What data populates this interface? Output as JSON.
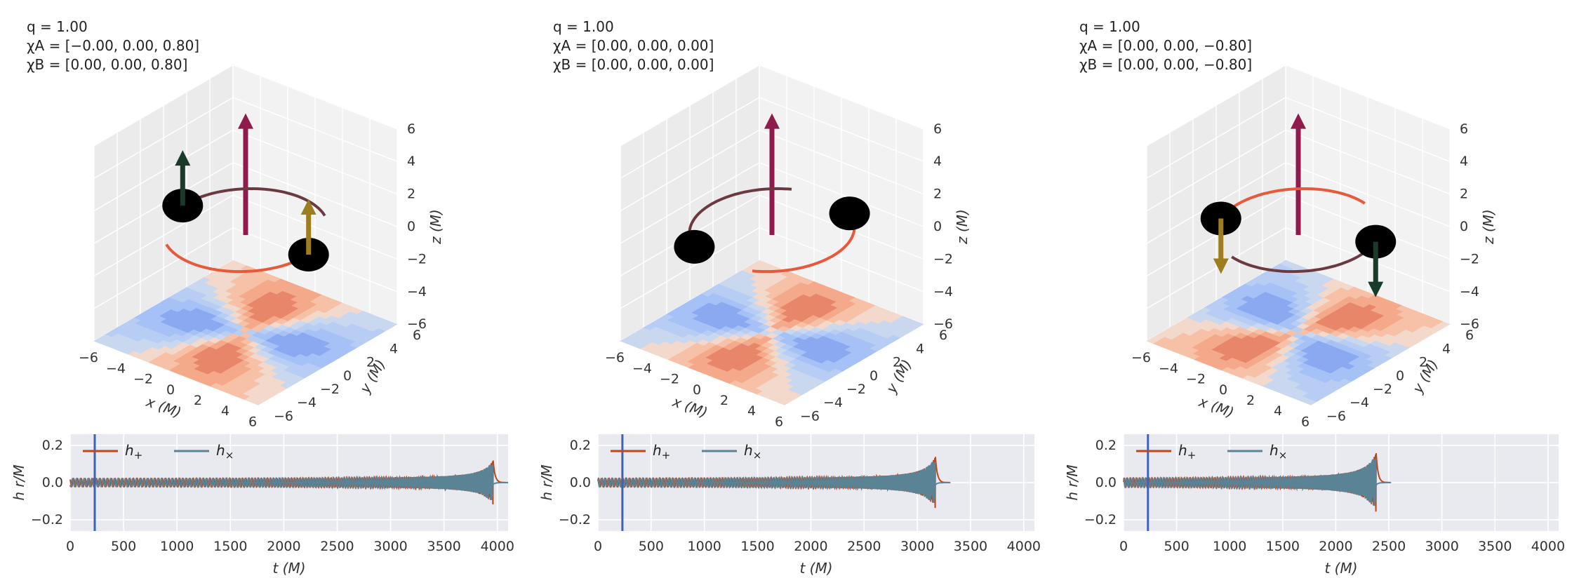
{
  "colors": {
    "background": "#ffffff",
    "pane": "#f2f2f2",
    "pane_side": "#ebebeb",
    "grid": "#ffffff",
    "bh": "#000000",
    "orbit_a": "#e8583b",
    "orbit_b": "#6b3a40",
    "orbital_L": "#8e1b4c",
    "spin_a": "#9c7e1e",
    "spin_b": "#1b3b2a",
    "hplus": "#c0451b",
    "hcross": "#5a8496",
    "vline": "#3e63b5",
    "plot_bg": "#e9e9f0",
    "contour_blue": [
      "#c9d8ee",
      "#b8cdf3",
      "#a6c1f6",
      "#8aa9f0"
    ],
    "contour_red": [
      "#f2d9cc",
      "#f6c1a6",
      "#f3a98a",
      "#e8866a"
    ]
  },
  "chart_data": [
    {
      "type": "3d-trajectory",
      "annotation": [
        "q = 1.00",
        "χA = [−0.00, 0.00, 0.80]",
        "χB = [0.00, 0.00, 0.80]"
      ],
      "axes": {
        "x": {
          "label": "x (M)",
          "range": [
            -6,
            6
          ],
          "ticks": [
            "−6",
            "−4",
            "−2",
            "0",
            "2",
            "4",
            "6"
          ]
        },
        "y": {
          "label": "y (M)",
          "range": [
            -6,
            6
          ],
          "ticks": [
            "−6",
            "−4",
            "−2",
            "0",
            "2",
            "4",
            "6"
          ]
        },
        "z": {
          "label": "z (M)",
          "range": [
            -6,
            6
          ],
          "ticks": [
            "−6",
            "−4",
            "−2",
            "0",
            "2",
            "4",
            "6"
          ]
        }
      },
      "spin_direction": [
        1,
        1
      ],
      "phase_deg": 0,
      "description": "Black holes A and B on a circular orbit with spins aligned with orbital angular momentum"
    },
    {
      "type": "3d-trajectory",
      "annotation": [
        "q = 1.00",
        "χA = [0.00, 0.00, 0.00]",
        "χB = [0.00, 0.00, 0.00]"
      ],
      "axes": {
        "x": {
          "label": "x (M)",
          "range": [
            -6,
            6
          ],
          "ticks": [
            "−6",
            "−4",
            "−2",
            "0",
            "2",
            "4",
            "6"
          ]
        },
        "y": {
          "label": "y (M)",
          "range": [
            -6,
            6
          ],
          "ticks": [
            "−6",
            "−4",
            "−2",
            "0",
            "2",
            "4",
            "6"
          ]
        },
        "z": {
          "label": "z (M)",
          "range": [
            -6,
            6
          ],
          "ticks": [
            "−6",
            "−4",
            "−2",
            "0",
            "2",
            "4",
            "6"
          ]
        }
      },
      "spin_direction": [
        0,
        0
      ],
      "phase_deg": 60,
      "description": "Non-spinning equal-mass binary"
    },
    {
      "type": "3d-trajectory",
      "annotation": [
        "q = 1.00",
        "χA = [0.00, 0.00, −0.80]",
        "χB = [0.00, 0.00, −0.80]"
      ],
      "axes": {
        "x": {
          "label": "x (M)",
          "range": [
            -6,
            6
          ],
          "ticks": [
            "−6",
            "−4",
            "−2",
            "0",
            "2",
            "4",
            "6"
          ]
        },
        "y": {
          "label": "y (M)",
          "range": [
            -6,
            6
          ],
          "ticks": [
            "−6",
            "−4",
            "−2",
            "0",
            "2",
            "4",
            "6"
          ]
        },
        "z": {
          "label": "z (M)",
          "range": [
            -6,
            6
          ],
          "ticks": [
            "−6",
            "−4",
            "−2",
            "0",
            "2",
            "4",
            "6"
          ]
        }
      },
      "spin_direction": [
        -1,
        -1
      ],
      "phase_deg": 200,
      "description": "Spins anti-aligned with orbital angular momentum"
    },
    {
      "type": "line",
      "title": "",
      "xlabel": "t (M)",
      "ylabel": "h r/M",
      "xlim": [
        0,
        4100
      ],
      "ylim": [
        -0.26,
        0.26
      ],
      "xticks": [
        "0",
        "500",
        "1000",
        "1500",
        "2000",
        "2500",
        "3000",
        "3500",
        "4000"
      ],
      "yticks": [
        "−0.2",
        "0.0",
        "0.2"
      ],
      "merger_time": 3960,
      "vline_t": 230,
      "series": [
        {
          "name": "h+",
          "label": "h",
          "sub": "+",
          "inspiral_amplitude": 0.02,
          "peak_amplitude": 0.12
        },
        {
          "name": "h×",
          "label": "h",
          "sub": "×",
          "inspiral_amplitude": 0.02,
          "peak_amplitude": 0.12
        }
      ]
    },
    {
      "type": "line",
      "title": "",
      "xlabel": "t (M)",
      "ylabel": "h r/M",
      "xlim": [
        0,
        4100
      ],
      "ylim": [
        -0.26,
        0.26
      ],
      "xticks": [
        "0",
        "500",
        "1000",
        "1500",
        "2000",
        "2500",
        "3000",
        "3500",
        "4000"
      ],
      "yticks": [
        "−0.2",
        "0.0",
        "0.2"
      ],
      "merger_time": 3170,
      "vline_t": 230,
      "series": [
        {
          "name": "h+",
          "label": "h",
          "sub": "+",
          "inspiral_amplitude": 0.02,
          "peak_amplitude": 0.14
        },
        {
          "name": "h×",
          "label": "h",
          "sub": "×",
          "inspiral_amplitude": 0.02,
          "peak_amplitude": 0.14
        }
      ]
    },
    {
      "type": "line",
      "title": "",
      "xlabel": "t (M)",
      "ylabel": "h r/M",
      "xlim": [
        0,
        4100
      ],
      "ylim": [
        -0.26,
        0.26
      ],
      "xticks": [
        "0",
        "500",
        "1000",
        "1500",
        "2000",
        "2500",
        "3000",
        "3500",
        "4000"
      ],
      "yticks": [
        "−0.2",
        "0.0",
        "0.2"
      ],
      "merger_time": 2380,
      "vline_t": 230,
      "series": [
        {
          "name": "h+",
          "label": "h",
          "sub": "+",
          "inspiral_amplitude": 0.02,
          "peak_amplitude": 0.16
        },
        {
          "name": "h×",
          "label": "h",
          "sub": "×",
          "inspiral_amplitude": 0.02,
          "peak_amplitude": 0.16
        }
      ]
    }
  ]
}
